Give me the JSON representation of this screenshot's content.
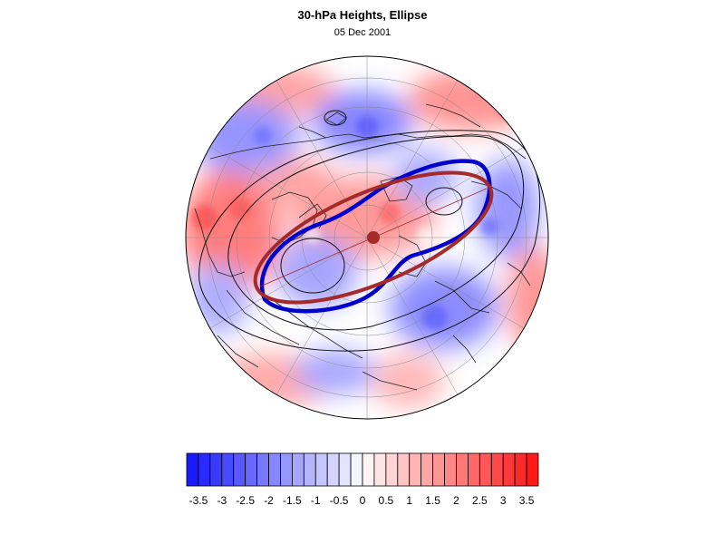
{
  "header": {
    "title": "30-hPa Heights, Ellipse",
    "date": "05 Dec 2001"
  },
  "colorbar": {
    "tick_labels": [
      "-3.5",
      "-3",
      "-2.5",
      "-2",
      "-1.5",
      "-1",
      "-0.5",
      "0",
      "0.5",
      "1",
      "1.5",
      "2",
      "2.5",
      "3",
      "3.5"
    ],
    "min": -3.75,
    "max": 3.75,
    "step": 0.25,
    "negative_color": "#1a1aff",
    "positive_color": "#ff1a1a",
    "neutral_color": "#ffffff"
  },
  "map": {
    "projection": "polar-stereographic-north",
    "ellipse_color": "#a52a2a",
    "contour_color": "#0000cc",
    "center_marker_color": "#a52a2a"
  }
}
